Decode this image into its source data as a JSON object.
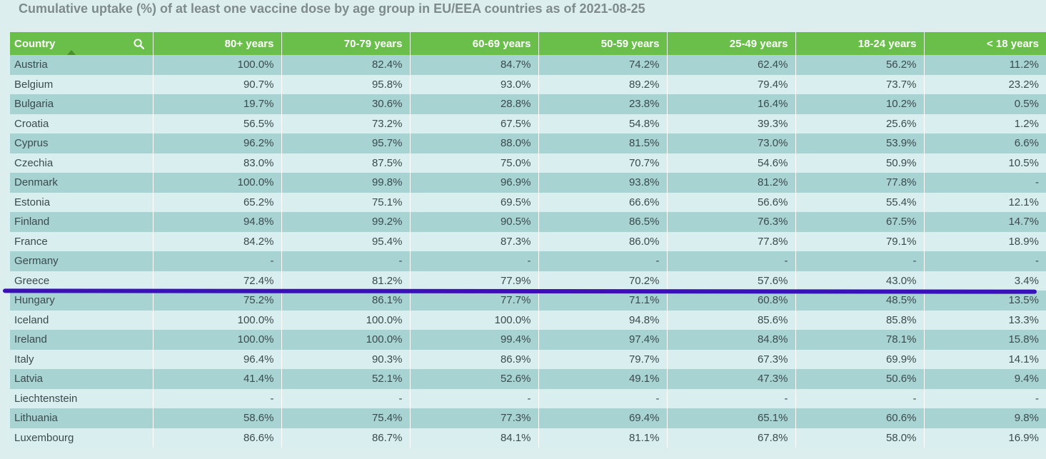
{
  "title": "Cumulative uptake (%) of at least one vaccine dose by age group in EU/EEA countries as of 2021-08-25",
  "colors": {
    "header_bg": "#6abf4b",
    "row_odd": "#a7d3d3",
    "row_even": "#d9efef",
    "annotation_line": "#3a10b8"
  },
  "table": {
    "headers": [
      "Country",
      "80+ years",
      "70-79 years",
      "60-69 years",
      "50-59 years",
      "25-49 years",
      "18-24 years",
      "< 18 years"
    ],
    "header_icon": "search-icon",
    "rows": [
      [
        "Austria",
        "100.0%",
        "82.4%",
        "84.7%",
        "74.2%",
        "62.4%",
        "56.2%",
        "11.2%"
      ],
      [
        "Belgium",
        "90.7%",
        "95.8%",
        "93.0%",
        "89.2%",
        "79.4%",
        "73.7%",
        "23.2%"
      ],
      [
        "Bulgaria",
        "19.7%",
        "30.6%",
        "28.8%",
        "23.8%",
        "16.4%",
        "10.2%",
        "0.5%"
      ],
      [
        "Croatia",
        "56.5%",
        "73.2%",
        "67.5%",
        "54.8%",
        "39.3%",
        "25.6%",
        "1.2%"
      ],
      [
        "Cyprus",
        "96.2%",
        "95.7%",
        "88.0%",
        "81.5%",
        "73.0%",
        "53.9%",
        "6.6%"
      ],
      [
        "Czechia",
        "83.0%",
        "87.5%",
        "75.0%",
        "70.7%",
        "54.6%",
        "50.9%",
        "10.5%"
      ],
      [
        "Denmark",
        "100.0%",
        "99.8%",
        "96.9%",
        "93.8%",
        "81.2%",
        "77.8%",
        "-"
      ],
      [
        "Estonia",
        "65.2%",
        "75.1%",
        "69.5%",
        "66.6%",
        "56.6%",
        "55.4%",
        "12.1%"
      ],
      [
        "Finland",
        "94.8%",
        "99.2%",
        "90.5%",
        "86.5%",
        "76.3%",
        "67.5%",
        "14.7%"
      ],
      [
        "France",
        "84.2%",
        "95.4%",
        "87.3%",
        "86.0%",
        "77.8%",
        "79.1%",
        "18.9%"
      ],
      [
        "Germany",
        "-",
        "-",
        "-",
        "-",
        "-",
        "-",
        "-"
      ],
      [
        "Greece",
        "72.4%",
        "81.2%",
        "77.9%",
        "70.2%",
        "57.6%",
        "43.0%",
        "3.4%"
      ],
      [
        "Hungary",
        "75.2%",
        "86.1%",
        "77.7%",
        "71.1%",
        "60.8%",
        "48.5%",
        "13.5%"
      ],
      [
        "Iceland",
        "100.0%",
        "100.0%",
        "100.0%",
        "94.8%",
        "85.6%",
        "85.8%",
        "13.3%"
      ],
      [
        "Ireland",
        "100.0%",
        "100.0%",
        "99.4%",
        "97.4%",
        "84.8%",
        "78.1%",
        "15.8%"
      ],
      [
        "Italy",
        "96.4%",
        "90.3%",
        "86.9%",
        "79.7%",
        "67.3%",
        "69.9%",
        "14.1%"
      ],
      [
        "Latvia",
        "41.4%",
        "52.1%",
        "52.6%",
        "49.1%",
        "47.3%",
        "50.6%",
        "9.4%"
      ],
      [
        "Liechtenstein",
        "-",
        "-",
        "-",
        "-",
        "-",
        "-",
        "-"
      ],
      [
        "Lithuania",
        "58.6%",
        "75.4%",
        "77.3%",
        "69.4%",
        "65.1%",
        "60.6%",
        "9.8%"
      ],
      [
        "Luxembourg",
        "86.6%",
        "86.7%",
        "84.1%",
        "81.1%",
        "67.8%",
        "58.0%",
        "16.9%"
      ]
    ]
  }
}
